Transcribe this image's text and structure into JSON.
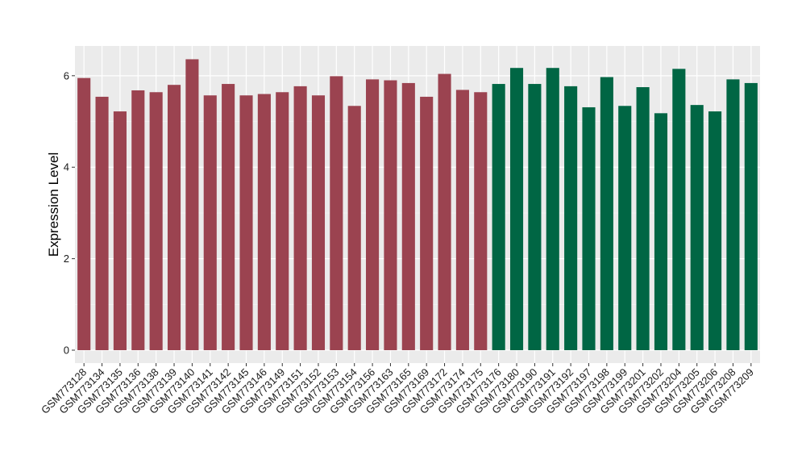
{
  "chart_data": {
    "type": "bar",
    "title": "",
    "xlabel": "",
    "ylabel": "Expression Level",
    "ylim": [
      0,
      6.65
    ],
    "yticks": [
      0,
      2,
      4,
      6
    ],
    "grid": true,
    "legend": "none",
    "background": "#ebebeb",
    "categories": [
      "GSM773128",
      "GSM773134",
      "GSM773135",
      "GSM773136",
      "GSM773138",
      "GSM773139",
      "GSM773140",
      "GSM773141",
      "GSM773142",
      "GSM773145",
      "GSM773146",
      "GSM773149",
      "GSM773151",
      "GSM773152",
      "GSM773153",
      "GSM773154",
      "GSM773156",
      "GSM773163",
      "GSM773165",
      "GSM773169",
      "GSM773172",
      "GSM773174",
      "GSM773175",
      "GSM773176",
      "GSM773180",
      "GSM773190",
      "GSM773191",
      "GSM773192",
      "GSM773197",
      "GSM773198",
      "GSM773199",
      "GSM773201",
      "GSM773202",
      "GSM773204",
      "GSM773205",
      "GSM773206",
      "GSM773208",
      "GSM773209"
    ],
    "values": [
      5.95,
      5.54,
      5.22,
      5.68,
      5.64,
      5.8,
      6.36,
      5.57,
      5.82,
      5.57,
      5.6,
      5.64,
      5.77,
      5.57,
      5.99,
      5.34,
      5.92,
      5.9,
      5.84,
      5.54,
      6.04,
      5.69,
      5.64,
      5.82,
      6.17,
      5.82,
      6.17,
      5.77,
      5.31,
      5.97,
      5.34,
      5.75,
      5.18,
      6.15,
      5.36,
      5.22,
      5.92,
      5.84
    ],
    "bar_colors": [
      "#9b4350",
      "#9b4350",
      "#9b4350",
      "#9b4350",
      "#9b4350",
      "#9b4350",
      "#9b4350",
      "#9b4350",
      "#9b4350",
      "#9b4350",
      "#9b4350",
      "#9b4350",
      "#9b4350",
      "#9b4350",
      "#9b4350",
      "#9b4350",
      "#9b4350",
      "#9b4350",
      "#9b4350",
      "#9b4350",
      "#9b4350",
      "#9b4350",
      "#9b4350",
      "#006644",
      "#006644",
      "#006644",
      "#006644",
      "#006644",
      "#006644",
      "#006644",
      "#006644",
      "#006644",
      "#006644",
      "#006644",
      "#006644",
      "#006644",
      "#006644",
      "#006644"
    ]
  }
}
